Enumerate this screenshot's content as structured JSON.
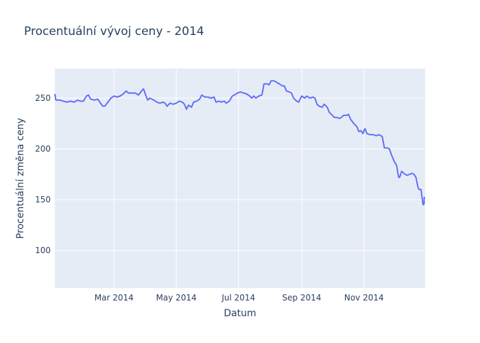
{
  "chart_data": {
    "type": "line",
    "title": "Procentuální vývoj ceny - 2014",
    "xlabel": "Datum",
    "ylabel": "Procentuální změna ceny",
    "x_ticks": [
      {
        "date": "2014-03-01",
        "label": "Mar 2014"
      },
      {
        "date": "2014-05-01",
        "label": "May 2014"
      },
      {
        "date": "2014-07-01",
        "label": "Jul 2014"
      },
      {
        "date": "2014-09-01",
        "label": "Sep 2014"
      },
      {
        "date": "2014-11-01",
        "label": "Nov 2014"
      }
    ],
    "y_ticks": [
      100,
      150,
      200,
      250
    ],
    "xlim": [
      "2014-01-02",
      "2014-12-31"
    ],
    "ylim": [
      63,
      279
    ],
    "grid": true,
    "colors": {
      "line": "#636efa",
      "plot_bg": "#e5ecf6",
      "grid": "#ffffff",
      "text": "#2a3f5f"
    },
    "series": [
      {
        "points": [
          [
            "2014-01-02",
            254
          ],
          [
            "2014-01-03",
            248
          ],
          [
            "2014-01-07",
            248
          ],
          [
            "2014-01-10",
            247
          ],
          [
            "2014-01-14",
            246
          ],
          [
            "2014-01-17",
            247
          ],
          [
            "2014-01-21",
            246
          ],
          [
            "2014-01-24",
            248
          ],
          [
            "2014-01-27",
            247
          ],
          [
            "2014-01-30",
            247
          ],
          [
            "2014-02-02",
            252
          ],
          [
            "2014-02-04",
            253
          ],
          [
            "2014-02-06",
            249
          ],
          [
            "2014-02-10",
            248
          ],
          [
            "2014-02-13",
            249
          ],
          [
            "2014-02-15",
            246
          ],
          [
            "2014-02-18",
            242
          ],
          [
            "2014-02-20",
            242
          ],
          [
            "2014-02-23",
            246
          ],
          [
            "2014-02-26",
            250
          ],
          [
            "2014-03-01",
            252
          ],
          [
            "2014-03-04",
            251
          ],
          [
            "2014-03-07",
            252
          ],
          [
            "2014-03-10",
            254
          ],
          [
            "2014-03-13",
            257
          ],
          [
            "2014-03-15",
            255
          ],
          [
            "2014-03-19",
            255
          ],
          [
            "2014-03-22",
            255
          ],
          [
            "2014-03-25",
            253
          ],
          [
            "2014-03-28",
            257
          ],
          [
            "2014-03-30",
            259
          ],
          [
            "2014-04-01",
            253
          ],
          [
            "2014-04-03",
            248
          ],
          [
            "2014-04-05",
            250
          ],
          [
            "2014-04-09",
            248
          ],
          [
            "2014-04-12",
            246
          ],
          [
            "2014-04-15",
            245
          ],
          [
            "2014-04-18",
            246
          ],
          [
            "2014-04-20",
            245
          ],
          [
            "2014-04-22",
            242
          ],
          [
            "2014-04-25",
            245
          ],
          [
            "2014-04-28",
            244
          ],
          [
            "2014-05-01",
            245
          ],
          [
            "2014-05-04",
            247
          ],
          [
            "2014-05-07",
            246
          ],
          [
            "2014-05-09",
            244
          ],
          [
            "2014-05-11",
            239
          ],
          [
            "2014-05-13",
            243
          ],
          [
            "2014-05-16",
            241
          ],
          [
            "2014-05-18",
            246
          ],
          [
            "2014-05-21",
            247
          ],
          [
            "2014-05-24",
            249
          ],
          [
            "2014-05-26",
            253
          ],
          [
            "2014-05-29",
            251
          ],
          [
            "2014-06-01",
            251
          ],
          [
            "2014-06-04",
            250
          ],
          [
            "2014-06-07",
            251
          ],
          [
            "2014-06-09",
            246
          ],
          [
            "2014-06-12",
            247
          ],
          [
            "2014-06-14",
            246
          ],
          [
            "2014-06-17",
            247
          ],
          [
            "2014-06-19",
            245
          ],
          [
            "2014-06-22",
            247
          ],
          [
            "2014-06-25",
            252
          ],
          [
            "2014-06-27",
            253
          ],
          [
            "2014-06-30",
            255
          ],
          [
            "2014-07-03",
            256
          ],
          [
            "2014-07-06",
            255
          ],
          [
            "2014-07-09",
            254
          ],
          [
            "2014-07-12",
            252
          ],
          [
            "2014-07-14",
            250
          ],
          [
            "2014-07-16",
            252
          ],
          [
            "2014-07-18",
            250
          ],
          [
            "2014-07-21",
            252
          ],
          [
            "2014-07-24",
            253
          ],
          [
            "2014-07-26",
            264
          ],
          [
            "2014-07-29",
            264
          ],
          [
            "2014-07-31",
            263
          ],
          [
            "2014-08-02",
            267
          ],
          [
            "2014-08-05",
            267
          ],
          [
            "2014-08-08",
            265
          ],
          [
            "2014-08-10",
            264
          ],
          [
            "2014-08-13",
            262
          ],
          [
            "2014-08-15",
            262
          ],
          [
            "2014-08-17",
            257
          ],
          [
            "2014-08-20",
            256
          ],
          [
            "2014-08-22",
            255
          ],
          [
            "2014-08-24",
            250
          ],
          [
            "2014-08-27",
            247
          ],
          [
            "2014-08-29",
            246
          ],
          [
            "2014-09-01",
            252
          ],
          [
            "2014-09-04",
            250
          ],
          [
            "2014-09-06",
            252
          ],
          [
            "2014-09-09",
            250
          ],
          [
            "2014-09-12",
            251
          ],
          [
            "2014-09-14",
            250
          ],
          [
            "2014-09-16",
            244
          ],
          [
            "2014-09-18",
            242
          ],
          [
            "2014-09-21",
            241
          ],
          [
            "2014-09-23",
            244
          ],
          [
            "2014-09-26",
            241
          ],
          [
            "2014-09-28",
            236
          ],
          [
            "2014-10-01",
            233
          ],
          [
            "2014-10-03",
            231
          ],
          [
            "2014-10-05",
            231
          ],
          [
            "2014-10-08",
            230
          ],
          [
            "2014-10-10",
            231
          ],
          [
            "2014-10-12",
            233
          ],
          [
            "2014-10-15",
            233
          ],
          [
            "2014-10-17",
            234
          ],
          [
            "2014-10-19",
            229
          ],
          [
            "2014-10-22",
            225
          ],
          [
            "2014-10-25",
            222
          ],
          [
            "2014-10-27",
            217
          ],
          [
            "2014-10-29",
            218
          ],
          [
            "2014-10-31",
            215
          ],
          [
            "2014-11-02",
            220
          ],
          [
            "2014-11-04",
            215
          ],
          [
            "2014-11-07",
            214
          ],
          [
            "2014-11-10",
            214
          ],
          [
            "2014-11-13",
            213
          ],
          [
            "2014-11-16",
            214
          ],
          [
            "2014-11-19",
            212
          ],
          [
            "2014-11-21",
            201
          ],
          [
            "2014-11-24",
            201
          ],
          [
            "2014-11-26",
            200
          ],
          [
            "2014-11-28",
            194
          ],
          [
            "2014-12-01",
            187
          ],
          [
            "2014-12-03",
            184
          ],
          [
            "2014-12-05",
            172
          ],
          [
            "2014-12-06",
            172
          ],
          [
            "2014-12-08",
            178
          ],
          [
            "2014-12-10",
            176
          ],
          [
            "2014-12-13",
            174
          ],
          [
            "2014-12-16",
            175
          ],
          [
            "2014-12-18",
            176
          ],
          [
            "2014-12-20",
            175
          ],
          [
            "2014-12-22",
            172
          ],
          [
            "2014-12-24",
            162
          ],
          [
            "2014-12-25",
            160
          ],
          [
            "2014-12-27",
            160
          ],
          [
            "2014-12-28",
            152
          ],
          [
            "2014-12-29",
            145
          ],
          [
            "2014-12-30",
            146
          ],
          [
            "2014-12-30",
            152
          ],
          [
            "2014-12-31",
            152
          ]
        ]
      }
    ]
  }
}
